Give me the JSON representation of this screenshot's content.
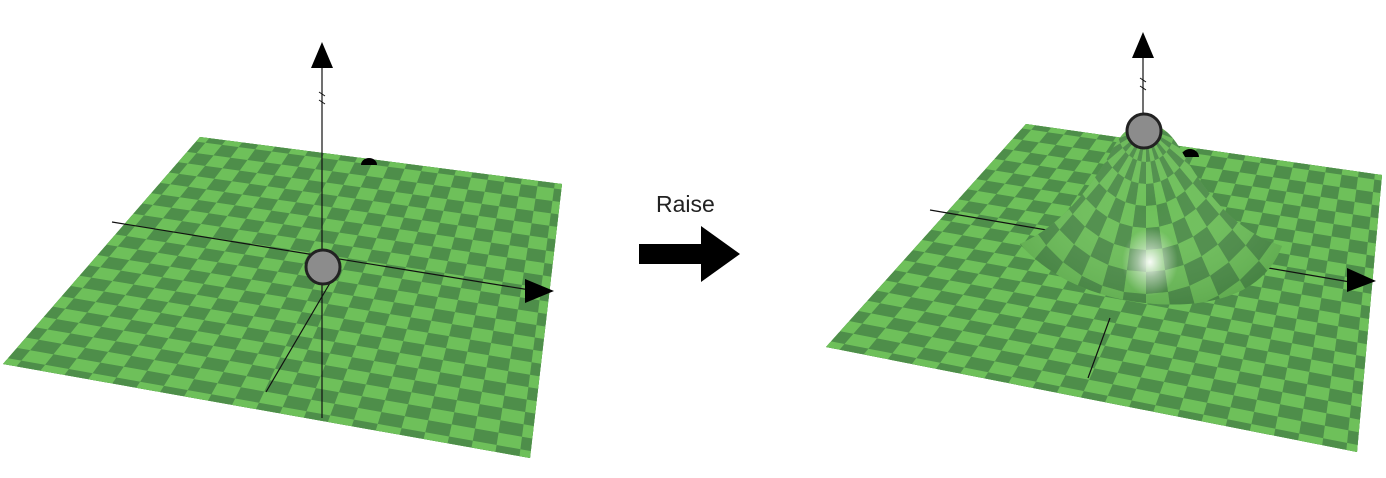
{
  "transition": {
    "label": "Raise"
  },
  "colors": {
    "checker_light": "#6ec05a",
    "checker_dark": "#4e8e4a",
    "control_point": "#8c8c8c",
    "axis": "#111111",
    "arrow": "#000000"
  },
  "panels": [
    {
      "name": "before-plane",
      "state": "flat"
    },
    {
      "name": "after-plane",
      "state": "raised"
    }
  ]
}
